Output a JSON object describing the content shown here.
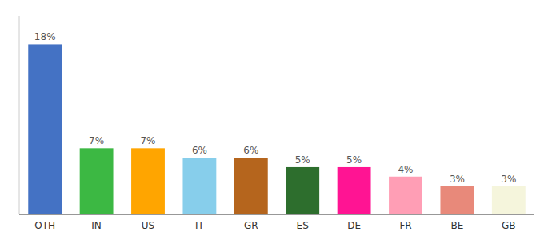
{
  "chart_data": {
    "type": "bar",
    "categories": [
      "OTH",
      "IN",
      "US",
      "IT",
      "GR",
      "ES",
      "DE",
      "FR",
      "BE",
      "GB"
    ],
    "values": [
      18,
      7,
      7,
      6,
      6,
      5,
      5,
      4,
      3,
      3
    ],
    "value_labels": [
      "18%",
      "7%",
      "7%",
      "6%",
      "6%",
      "5%",
      "5%",
      "4%",
      "3%",
      "3%"
    ],
    "colors": [
      "#4472c4",
      "#3cb843",
      "#ffa500",
      "#87ceeb",
      "#b5651d",
      "#2d6e2d",
      "#ff1493",
      "#ff9eb5",
      "#e8897a",
      "#f5f5dc"
    ],
    "ylim": [
      0,
      21
    ],
    "data_labels": true,
    "tick_labels": "x"
  }
}
